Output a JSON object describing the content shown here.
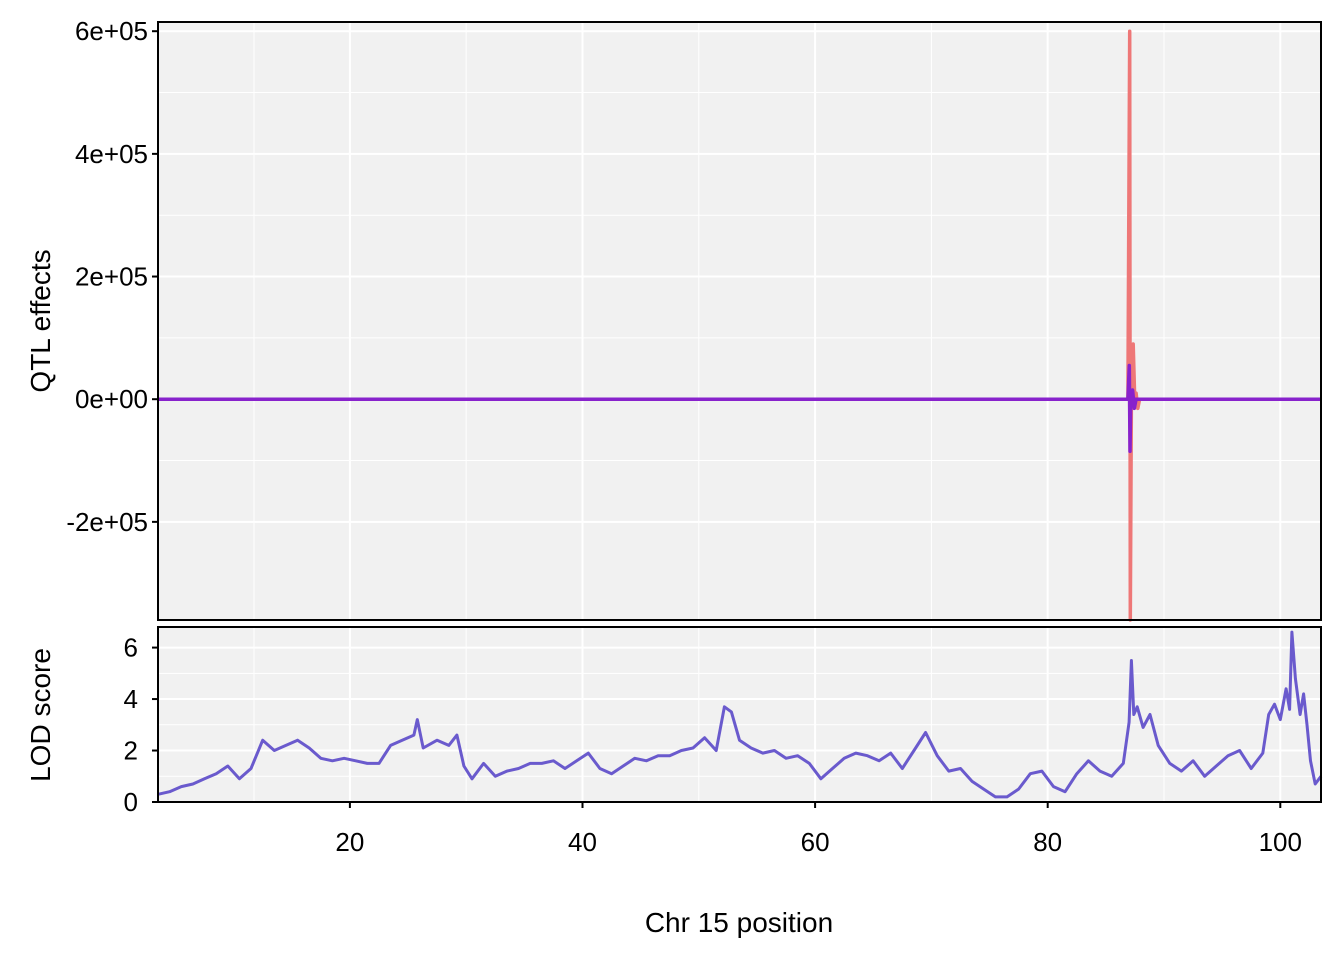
{
  "chart_data": [
    {
      "type": "line",
      "panel": "top",
      "ylabel": "QTL effects",
      "xlim": [
        3.5,
        103.5
      ],
      "ylim": [
        -360000,
        615000
      ],
      "y_ticks": [
        {
          "value": 600000,
          "label": "6e+05"
        },
        {
          "value": 400000,
          "label": "4e+05"
        },
        {
          "value": 200000,
          "label": "2e+05"
        },
        {
          "value": 0,
          "label": "0e+00"
        },
        {
          "value": -200000,
          "label": "-2e+05"
        }
      ],
      "colors": {
        "coef_a": "#EE7777",
        "coef_b": "#AA00BB",
        "coef_c": "#8822CC"
      },
      "series": [
        {
          "key": "coef_a",
          "x": [
            3.5,
            86.9,
            87.05,
            87.1,
            87.2,
            87.35,
            87.5,
            87.6,
            87.75,
            87.9,
            103.5
          ],
          "y": [
            0,
            0,
            600000,
            -360000,
            0,
            90000,
            -10000,
            10000,
            -15000,
            0,
            0
          ]
        },
        {
          "key": "coef_b",
          "x": [
            3.5,
            103.5
          ],
          "y": [
            0,
            0
          ]
        },
        {
          "key": "coef_c",
          "x": [
            3.5,
            86.9,
            87.02,
            87.08,
            87.15,
            87.3,
            87.45,
            87.6,
            103.5
          ],
          "y": [
            0,
            0,
            55000,
            -85000,
            0,
            15000,
            -15000,
            0,
            0
          ]
        }
      ]
    },
    {
      "type": "line",
      "panel": "bottom",
      "ylabel": "LOD score",
      "xlabel": "Chr 15 position",
      "xlim": [
        3.5,
        103.5
      ],
      "ylim": [
        0,
        6.8
      ],
      "x_ticks": [
        20,
        40,
        60,
        80,
        100
      ],
      "y_ticks": [
        0,
        2,
        4,
        6
      ],
      "color": "#6A5ACD",
      "series": [
        {
          "key": "lod",
          "x": [
            3.5,
            4.5,
            5.5,
            6.5,
            7.5,
            8.5,
            9.5,
            10.5,
            11.5,
            12.5,
            13.5,
            14.5,
            15.5,
            16.5,
            17.5,
            18.5,
            19.5,
            20.5,
            21.5,
            22.5,
            23.5,
            24.5,
            25.5,
            25.8,
            26.3,
            27.5,
            28.5,
            29.2,
            29.8,
            30.5,
            31.5,
            32.5,
            33.5,
            34.5,
            35.5,
            36.5,
            37.5,
            38.5,
            39.5,
            40.5,
            41.5,
            42.5,
            43.5,
            44.5,
            45.5,
            46.5,
            47.5,
            48.5,
            49.5,
            50.5,
            51.5,
            52.2,
            52.8,
            53.5,
            54.5,
            55.5,
            56.5,
            57.5,
            58.5,
            59.5,
            60.5,
            61.5,
            62.5,
            63.5,
            64.5,
            65.5,
            66.5,
            67.5,
            68.5,
            69.5,
            70.5,
            71.5,
            72.5,
            73.5,
            74.5,
            75.5,
            76.5,
            77.5,
            78.5,
            79.5,
            80.5,
            81.5,
            82.5,
            83.5,
            84.5,
            85.5,
            86.5,
            87.0,
            87.2,
            87.4,
            87.7,
            88.2,
            88.8,
            89.5,
            90.5,
            91.5,
            92.5,
            93.5,
            94.5,
            95.5,
            96.5,
            97.5,
            98.5,
            99.0,
            99.5,
            100.0,
            100.5,
            100.8,
            101.0,
            101.3,
            101.7,
            102.0,
            102.3,
            102.6,
            103.0,
            103.5
          ],
          "y": [
            0.3,
            0.4,
            0.6,
            0.7,
            0.9,
            1.1,
            1.4,
            0.9,
            1.3,
            2.4,
            2.0,
            2.2,
            2.4,
            2.1,
            1.7,
            1.6,
            1.7,
            1.6,
            1.5,
            1.5,
            2.2,
            2.4,
            2.6,
            3.2,
            2.1,
            2.4,
            2.2,
            2.6,
            1.4,
            0.9,
            1.5,
            1.0,
            1.2,
            1.3,
            1.5,
            1.5,
            1.6,
            1.3,
            1.6,
            1.9,
            1.3,
            1.1,
            1.4,
            1.7,
            1.6,
            1.8,
            1.8,
            2.0,
            2.1,
            2.5,
            2.0,
            3.7,
            3.5,
            2.4,
            2.1,
            1.9,
            2.0,
            1.7,
            1.8,
            1.5,
            0.9,
            1.3,
            1.7,
            1.9,
            1.8,
            1.6,
            1.9,
            1.3,
            2.0,
            2.7,
            1.8,
            1.2,
            1.3,
            0.8,
            0.5,
            0.2,
            0.2,
            0.5,
            1.1,
            1.2,
            0.6,
            0.4,
            1.1,
            1.6,
            1.2,
            1.0,
            1.5,
            3.1,
            5.5,
            3.4,
            3.7,
            2.9,
            3.4,
            2.2,
            1.5,
            1.2,
            1.6,
            1.0,
            1.4,
            1.8,
            2.0,
            1.3,
            1.9,
            3.4,
            3.8,
            3.2,
            4.4,
            3.6,
            6.6,
            4.8,
            3.4,
            4.2,
            3.0,
            1.6,
            0.7,
            1.0
          ]
        }
      ]
    }
  ]
}
